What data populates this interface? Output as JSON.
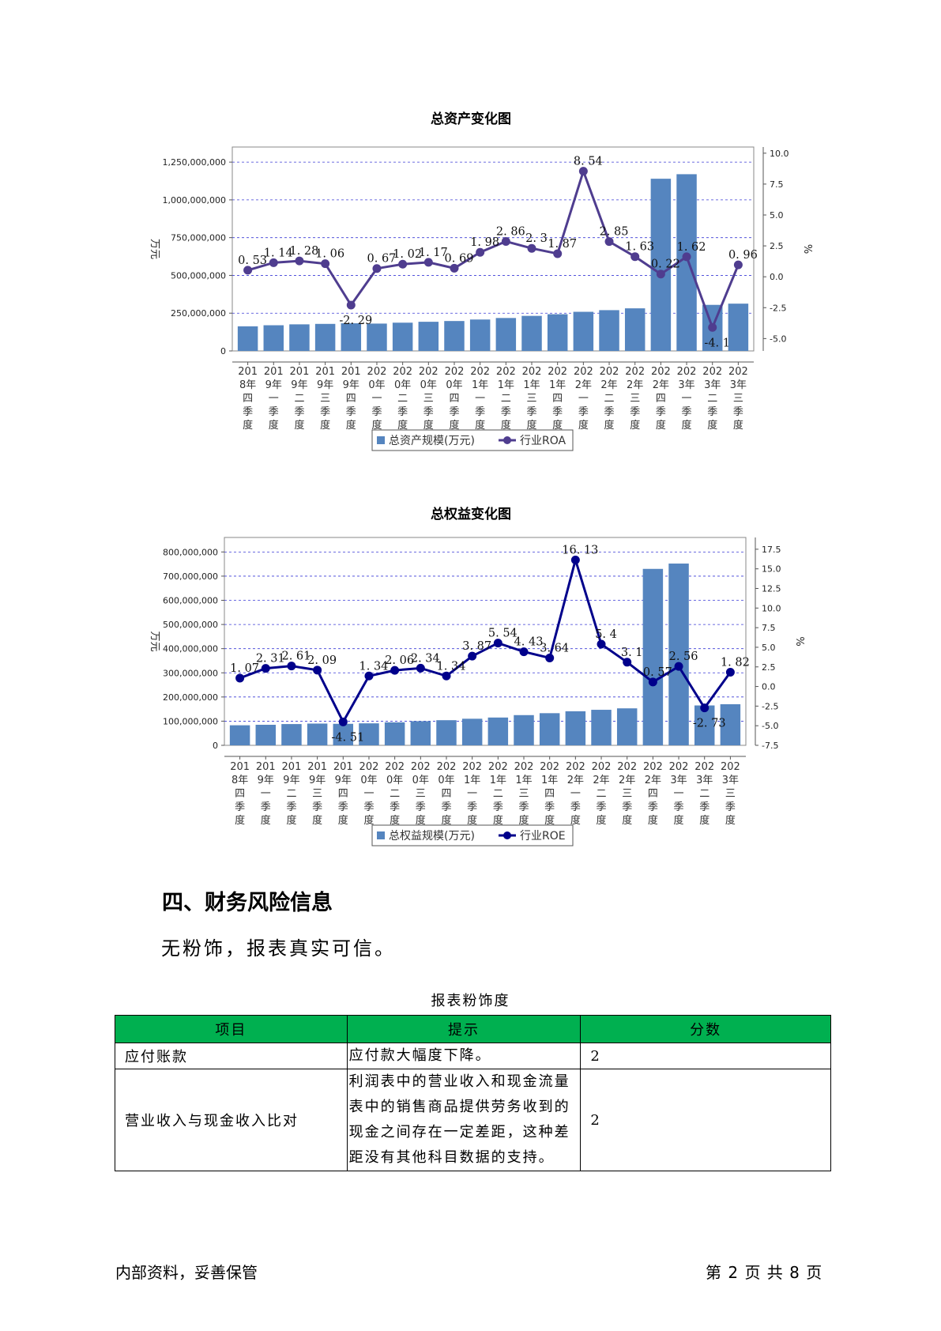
{
  "chart_data": [
    {
      "type": "bar",
      "title": "总资产变化图",
      "ylabel": "万元",
      "y2label": "%",
      "ylim": [
        0,
        1350000000
      ],
      "y2lim": [
        -6,
        10.5
      ],
      "yticks": [
        0,
        250000000,
        500000000,
        750000000,
        1000000000,
        1250000000
      ],
      "ytick_labels": [
        "0",
        "250,000,000",
        "500,000,000",
        "750,000,000",
        "1,000,000,000",
        "1,250,000,000"
      ],
      "y2ticks": [
        -5.0,
        -2.5,
        0.0,
        2.5,
        5.0,
        7.5,
        10.0
      ],
      "y2tick_labels": [
        "-5.0",
        "-2.5",
        "0.0",
        "2.5",
        "5.0",
        "7.5",
        "10.0"
      ],
      "categories": [
        [
          "201",
          "8年",
          "四",
          "季",
          "度"
        ],
        [
          "201",
          "9年",
          "一",
          "季",
          "度"
        ],
        [
          "201",
          "9年",
          "二",
          "季",
          "度"
        ],
        [
          "201",
          "9年",
          "三",
          "季",
          "度"
        ],
        [
          "201",
          "9年",
          "四",
          "季",
          "度"
        ],
        [
          "202",
          "0年",
          "一",
          "季",
          "度"
        ],
        [
          "202",
          "0年",
          "二",
          "季",
          "度"
        ],
        [
          "202",
          "0年",
          "三",
          "季",
          "度"
        ],
        [
          "202",
          "0年",
          "四",
          "季",
          "度"
        ],
        [
          "202",
          "1年",
          "一",
          "季",
          "度"
        ],
        [
          "202",
          "1年",
          "二",
          "季",
          "度"
        ],
        [
          "202",
          "1年",
          "三",
          "季",
          "度"
        ],
        [
          "202",
          "1年",
          "四",
          "季",
          "度"
        ],
        [
          "202",
          "2年",
          "一",
          "季",
          "度"
        ],
        [
          "202",
          "2年",
          "二",
          "季",
          "度"
        ],
        [
          "202",
          "2年",
          "三",
          "季",
          "度"
        ],
        [
          "202",
          "2年",
          "四",
          "季",
          "度"
        ],
        [
          "202",
          "3年",
          "一",
          "季",
          "度"
        ],
        [
          "202",
          "3年",
          "二",
          "季",
          "度"
        ],
        [
          "202",
          "3年",
          "三",
          "季",
          "度"
        ]
      ],
      "series": [
        {
          "name": "总资产规模(万元)",
          "type": "bar",
          "color": "#5585bf",
          "values": [
            163000000,
            170000000,
            176000000,
            179000000,
            183000000,
            181000000,
            187000000,
            193000000,
            198000000,
            208000000,
            218000000,
            232000000,
            243000000,
            259000000,
            270000000,
            282000000,
            1140000000,
            1170000000,
            305000000,
            313000000
          ]
        },
        {
          "name": "行业ROA",
          "type": "line",
          "axis": "right",
          "color": "#4f3d8f",
          "values": [
            0.53,
            1.14,
            1.28,
            1.06,
            -2.29,
            0.67,
            1.02,
            1.17,
            0.69,
            1.98,
            2.86,
            2.3,
            1.87,
            8.54,
            2.85,
            1.63,
            0.22,
            1.62,
            -4.1,
            0.96
          ],
          "labels": [
            "0. 53",
            "1. 14",
            "1. 28",
            "1. 06",
            "-2. 29",
            "0. 67",
            "1. 02",
            "1. 17",
            "0. 69",
            "1. 98",
            "2. 86",
            "2. 3",
            "1. 87",
            "8. 54",
            "2. 85",
            "1. 63",
            "0. 22",
            "1. 62",
            "-4. 1",
            "0. 96"
          ]
        }
      ],
      "legend": {
        "placement": "bottom",
        "items": [
          "总资产规模(万元)",
          "行业ROA"
        ]
      }
    },
    {
      "type": "bar",
      "title": "总权益变化图",
      "ylabel": "万元",
      "y2label": "%",
      "ylim": [
        0,
        860000000
      ],
      "y2lim": [
        -7.5,
        19
      ],
      "yticks": [
        0,
        100000000,
        200000000,
        300000000,
        400000000,
        500000000,
        600000000,
        700000000,
        800000000
      ],
      "ytick_labels": [
        "0",
        "100,000,000",
        "200,000,000",
        "300,000,000",
        "400,000,000",
        "500,000,000",
        "600,000,000",
        "700,000,000",
        "800,000,000"
      ],
      "y2ticks": [
        -7.5,
        -5.0,
        -2.5,
        0.0,
        2.5,
        5.0,
        7.5,
        10.0,
        12.5,
        15.0,
        17.5
      ],
      "y2tick_labels": [
        "-7.5",
        "-5.0",
        "-2.5",
        "0.0",
        "2.5",
        "5.0",
        "7.5",
        "10.0",
        "12.5",
        "15.0",
        "17.5"
      ],
      "categories": [
        [
          "201",
          "8年",
          "四",
          "季",
          "度"
        ],
        [
          "201",
          "9年",
          "一",
          "季",
          "度"
        ],
        [
          "201",
          "9年",
          "二",
          "季",
          "度"
        ],
        [
          "201",
          "9年",
          "三",
          "季",
          "度"
        ],
        [
          "201",
          "9年",
          "四",
          "季",
          "度"
        ],
        [
          "202",
          "0年",
          "一",
          "季",
          "度"
        ],
        [
          "202",
          "0年",
          "二",
          "季",
          "度"
        ],
        [
          "202",
          "0年",
          "三",
          "季",
          "度"
        ],
        [
          "202",
          "0年",
          "四",
          "季",
          "度"
        ],
        [
          "202",
          "1年",
          "一",
          "季",
          "度"
        ],
        [
          "202",
          "1年",
          "二",
          "季",
          "度"
        ],
        [
          "202",
          "1年",
          "三",
          "季",
          "度"
        ],
        [
          "202",
          "1年",
          "四",
          "季",
          "度"
        ],
        [
          "202",
          "2年",
          "一",
          "季",
          "度"
        ],
        [
          "202",
          "2年",
          "二",
          "季",
          "度"
        ],
        [
          "202",
          "2年",
          "三",
          "季",
          "度"
        ],
        [
          "202",
          "2年",
          "四",
          "季",
          "度"
        ],
        [
          "202",
          "3年",
          "一",
          "季",
          "度"
        ],
        [
          "202",
          "3年",
          "二",
          "季",
          "度"
        ],
        [
          "202",
          "3年",
          "三",
          "季",
          "度"
        ]
      ],
      "series": [
        {
          "name": "总权益规模(万元)",
          "type": "bar",
          "color": "#5585bf",
          "values": [
            83000000,
            85000000,
            88000000,
            90000000,
            89000000,
            91000000,
            95000000,
            100000000,
            104000000,
            110000000,
            115000000,
            125000000,
            133000000,
            141000000,
            147000000,
            153000000,
            730000000,
            752000000,
            165000000,
            170000000
          ]
        },
        {
          "name": "行业ROE",
          "type": "line",
          "axis": "right",
          "color": "#00008b",
          "values": [
            1.07,
            2.31,
            2.61,
            2.09,
            -4.51,
            1.34,
            2.06,
            2.34,
            1.34,
            3.87,
            5.54,
            4.43,
            3.64,
            16.13,
            5.4,
            3.1,
            0.57,
            2.56,
            -2.73,
            1.82
          ],
          "labels": [
            "1. 07",
            "2. 31",
            "2. 61",
            "2. 09",
            "-4. 51",
            "1. 34",
            "2. 06",
            "2. 34",
            "1. 34",
            "3. 87",
            "5. 54",
            "4. 43",
            "3. 64",
            "16. 13",
            "5. 4",
            "3. 1",
            "0. 57",
            "2. 56",
            "-2. 73",
            "1. 82"
          ]
        }
      ],
      "legend": {
        "placement": "bottom",
        "items": [
          "总权益规模(万元)",
          "行业ROE"
        ]
      }
    }
  ],
  "section": {
    "heading": "四、财务风险信息",
    "body": "无粉饰，报表真实可信。"
  },
  "table": {
    "caption": "报表粉饰度",
    "header_color": "#00b050",
    "headers": [
      "项目",
      "提示",
      "分数"
    ],
    "rows": [
      {
        "item": "应付账款",
        "hint": "应付款大幅度下降。",
        "score": "2"
      },
      {
        "item": "营业收入与现金收入比对",
        "hint": "利润表中的营业收入和现金流量表中的销售商品提供劳务收到的现金之间存在一定差距，这种差距没有其他科目数据的支持。",
        "score": "2"
      }
    ]
  },
  "footer": {
    "left": "内部资料，妥善保管",
    "right": "第 2 页  共 8 页"
  }
}
